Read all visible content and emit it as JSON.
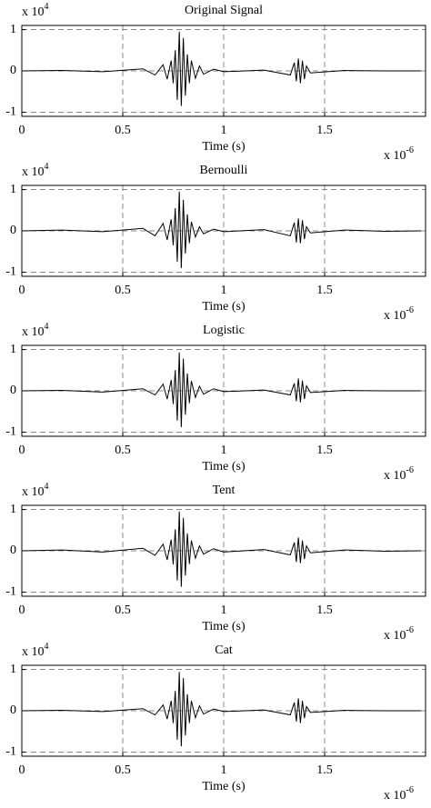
{
  "chart_data": [
    {
      "type": "line",
      "title": "Original Signal",
      "xlabel": "Time (s)",
      "x_multiplier": {
        "base": "x 10",
        "exponent": "-6"
      },
      "y_multiplier": {
        "base": "x 10",
        "exponent": "4"
      },
      "xlim": [
        0,
        2
      ],
      "ylim": [
        -1.1,
        1.1
      ],
      "xticks": [
        0,
        0.5,
        1,
        1.5
      ],
      "yticks": [
        -1,
        0,
        1
      ],
      "grid": true,
      "color": "#000000",
      "x": [
        0,
        0.2,
        0.4,
        0.6,
        0.66,
        0.7,
        0.72,
        0.74,
        0.75,
        0.76,
        0.77,
        0.78,
        0.79,
        0.8,
        0.81,
        0.82,
        0.83,
        0.84,
        0.86,
        0.88,
        0.9,
        0.95,
        1.0,
        1.2,
        1.33,
        1.35,
        1.36,
        1.37,
        1.38,
        1.39,
        1.4,
        1.41,
        1.43,
        1.6,
        1.8,
        1.98
      ],
      "values": [
        0,
        0.01,
        -0.02,
        0.05,
        -0.1,
        0.15,
        -0.2,
        0.25,
        -0.3,
        0.5,
        -0.7,
        0.95,
        -0.85,
        0.8,
        -0.6,
        0.4,
        -0.3,
        0.25,
        -0.18,
        0.12,
        -0.08,
        0.04,
        -0.02,
        0.02,
        -0.1,
        0.2,
        -0.25,
        0.3,
        -0.3,
        0.25,
        -0.2,
        0.12,
        -0.05,
        0.01,
        0,
        0
      ]
    },
    {
      "type": "line",
      "title": "Bernoulli",
      "xlabel": "Time (s)",
      "x_multiplier": {
        "base": "x 10",
        "exponent": "-6"
      },
      "y_multiplier": {
        "base": "x 10",
        "exponent": "4"
      },
      "xlim": [
        0,
        2
      ],
      "ylim": [
        -1.1,
        1.1
      ],
      "xticks": [
        0,
        0.5,
        1,
        1.5
      ],
      "yticks": [
        -1,
        0,
        1
      ],
      "grid": true,
      "color": "#000000",
      "x": [
        0,
        0.2,
        0.4,
        0.6,
        0.66,
        0.7,
        0.72,
        0.74,
        0.75,
        0.76,
        0.77,
        0.78,
        0.79,
        0.8,
        0.81,
        0.82,
        0.83,
        0.84,
        0.86,
        0.88,
        0.9,
        0.95,
        1.0,
        1.2,
        1.33,
        1.35,
        1.36,
        1.37,
        1.38,
        1.39,
        1.4,
        1.41,
        1.43,
        1.6,
        1.8,
        1.98
      ],
      "values": [
        0,
        0.02,
        -0.02,
        0.06,
        -0.12,
        0.18,
        -0.22,
        0.28,
        -0.35,
        0.55,
        -0.75,
        0.95,
        -0.9,
        0.75,
        -0.55,
        0.4,
        -0.3,
        0.22,
        -0.15,
        0.1,
        -0.07,
        0.04,
        -0.02,
        0.03,
        -0.12,
        0.2,
        -0.28,
        0.3,
        -0.3,
        0.26,
        -0.2,
        0.1,
        -0.05,
        0.02,
        -0.01,
        0
      ]
    },
    {
      "type": "line",
      "title": "Logistic",
      "xlabel": "Time (s)",
      "x_multiplier": {
        "base": "x 10",
        "exponent": "-6"
      },
      "y_multiplier": {
        "base": "x 10",
        "exponent": "4"
      },
      "xlim": [
        0,
        2
      ],
      "ylim": [
        -1.1,
        1.1
      ],
      "xticks": [
        0,
        0.5,
        1,
        1.5
      ],
      "yticks": [
        -1,
        0,
        1
      ],
      "grid": true,
      "color": "#000000",
      "x": [
        0,
        0.2,
        0.4,
        0.6,
        0.66,
        0.7,
        0.72,
        0.74,
        0.75,
        0.76,
        0.77,
        0.78,
        0.79,
        0.8,
        0.81,
        0.82,
        0.83,
        0.84,
        0.86,
        0.88,
        0.9,
        0.95,
        1.0,
        1.2,
        1.33,
        1.35,
        1.36,
        1.37,
        1.38,
        1.39,
        1.4,
        1.41,
        1.43,
        1.6,
        1.8,
        1.98
      ],
      "values": [
        0,
        0.01,
        -0.03,
        0.05,
        -0.1,
        0.16,
        -0.2,
        0.26,
        -0.32,
        0.5,
        -0.72,
        0.93,
        -0.88,
        0.78,
        -0.58,
        0.42,
        -0.3,
        0.24,
        -0.16,
        0.11,
        -0.08,
        0.05,
        -0.02,
        0.02,
        -0.1,
        0.18,
        -0.25,
        0.3,
        -0.28,
        0.25,
        -0.2,
        0.12,
        -0.04,
        0.01,
        0,
        0
      ]
    },
    {
      "type": "line",
      "title": "Tent",
      "xlabel": "Time (s)",
      "x_multiplier": {
        "base": "x 10",
        "exponent": "-6"
      },
      "y_multiplier": {
        "base": "x 10",
        "exponent": "4"
      },
      "xlim": [
        0,
        2
      ],
      "ylim": [
        -1.1,
        1.1
      ],
      "xticks": [
        0,
        0.5,
        1,
        1.5
      ],
      "yticks": [
        -1,
        0,
        1
      ],
      "grid": true,
      "color": "#000000",
      "x": [
        0,
        0.2,
        0.4,
        0.6,
        0.66,
        0.7,
        0.72,
        0.74,
        0.75,
        0.76,
        0.77,
        0.78,
        0.79,
        0.8,
        0.81,
        0.82,
        0.83,
        0.84,
        0.86,
        0.88,
        0.9,
        0.95,
        1.0,
        1.2,
        1.33,
        1.35,
        1.36,
        1.37,
        1.38,
        1.39,
        1.4,
        1.41,
        1.43,
        1.6,
        1.8,
        1.98
      ],
      "values": [
        0,
        0.02,
        -0.03,
        0.06,
        -0.11,
        0.16,
        -0.22,
        0.27,
        -0.33,
        0.52,
        -0.72,
        0.95,
        -0.87,
        0.8,
        -0.6,
        0.42,
        -0.32,
        0.25,
        -0.18,
        0.12,
        -0.08,
        0.05,
        -0.03,
        0.03,
        -0.1,
        0.2,
        -0.27,
        0.32,
        -0.3,
        0.25,
        -0.2,
        0.12,
        -0.05,
        0.02,
        -0.01,
        0
      ]
    },
    {
      "type": "line",
      "title": "Cat",
      "xlabel": "Time (s)",
      "x_multiplier": {
        "base": "x 10",
        "exponent": "-6"
      },
      "y_multiplier": {
        "base": "x 10",
        "exponent": "4"
      },
      "xlim": [
        0,
        2
      ],
      "ylim": [
        -1.1,
        1.1
      ],
      "xticks": [
        0,
        0.5,
        1,
        1.5
      ],
      "yticks": [
        -1,
        0,
        1
      ],
      "grid": true,
      "color": "#000000",
      "x": [
        0,
        0.2,
        0.4,
        0.6,
        0.66,
        0.7,
        0.72,
        0.74,
        0.75,
        0.76,
        0.77,
        0.78,
        0.79,
        0.8,
        0.81,
        0.82,
        0.83,
        0.84,
        0.86,
        0.88,
        0.9,
        0.95,
        1.0,
        1.2,
        1.33,
        1.35,
        1.36,
        1.37,
        1.38,
        1.39,
        1.4,
        1.41,
        1.43,
        1.6,
        1.8,
        1.98
      ],
      "values": [
        0,
        0.01,
        -0.02,
        0.05,
        -0.1,
        0.14,
        -0.2,
        0.24,
        -0.3,
        0.48,
        -0.7,
        0.94,
        -0.86,
        0.79,
        -0.6,
        0.4,
        -0.3,
        0.24,
        -0.17,
        0.12,
        -0.08,
        0.04,
        -0.02,
        0.02,
        -0.1,
        0.2,
        -0.26,
        0.3,
        -0.3,
        0.24,
        -0.18,
        0.1,
        -0.04,
        0.01,
        0,
        0
      ]
    }
  ]
}
